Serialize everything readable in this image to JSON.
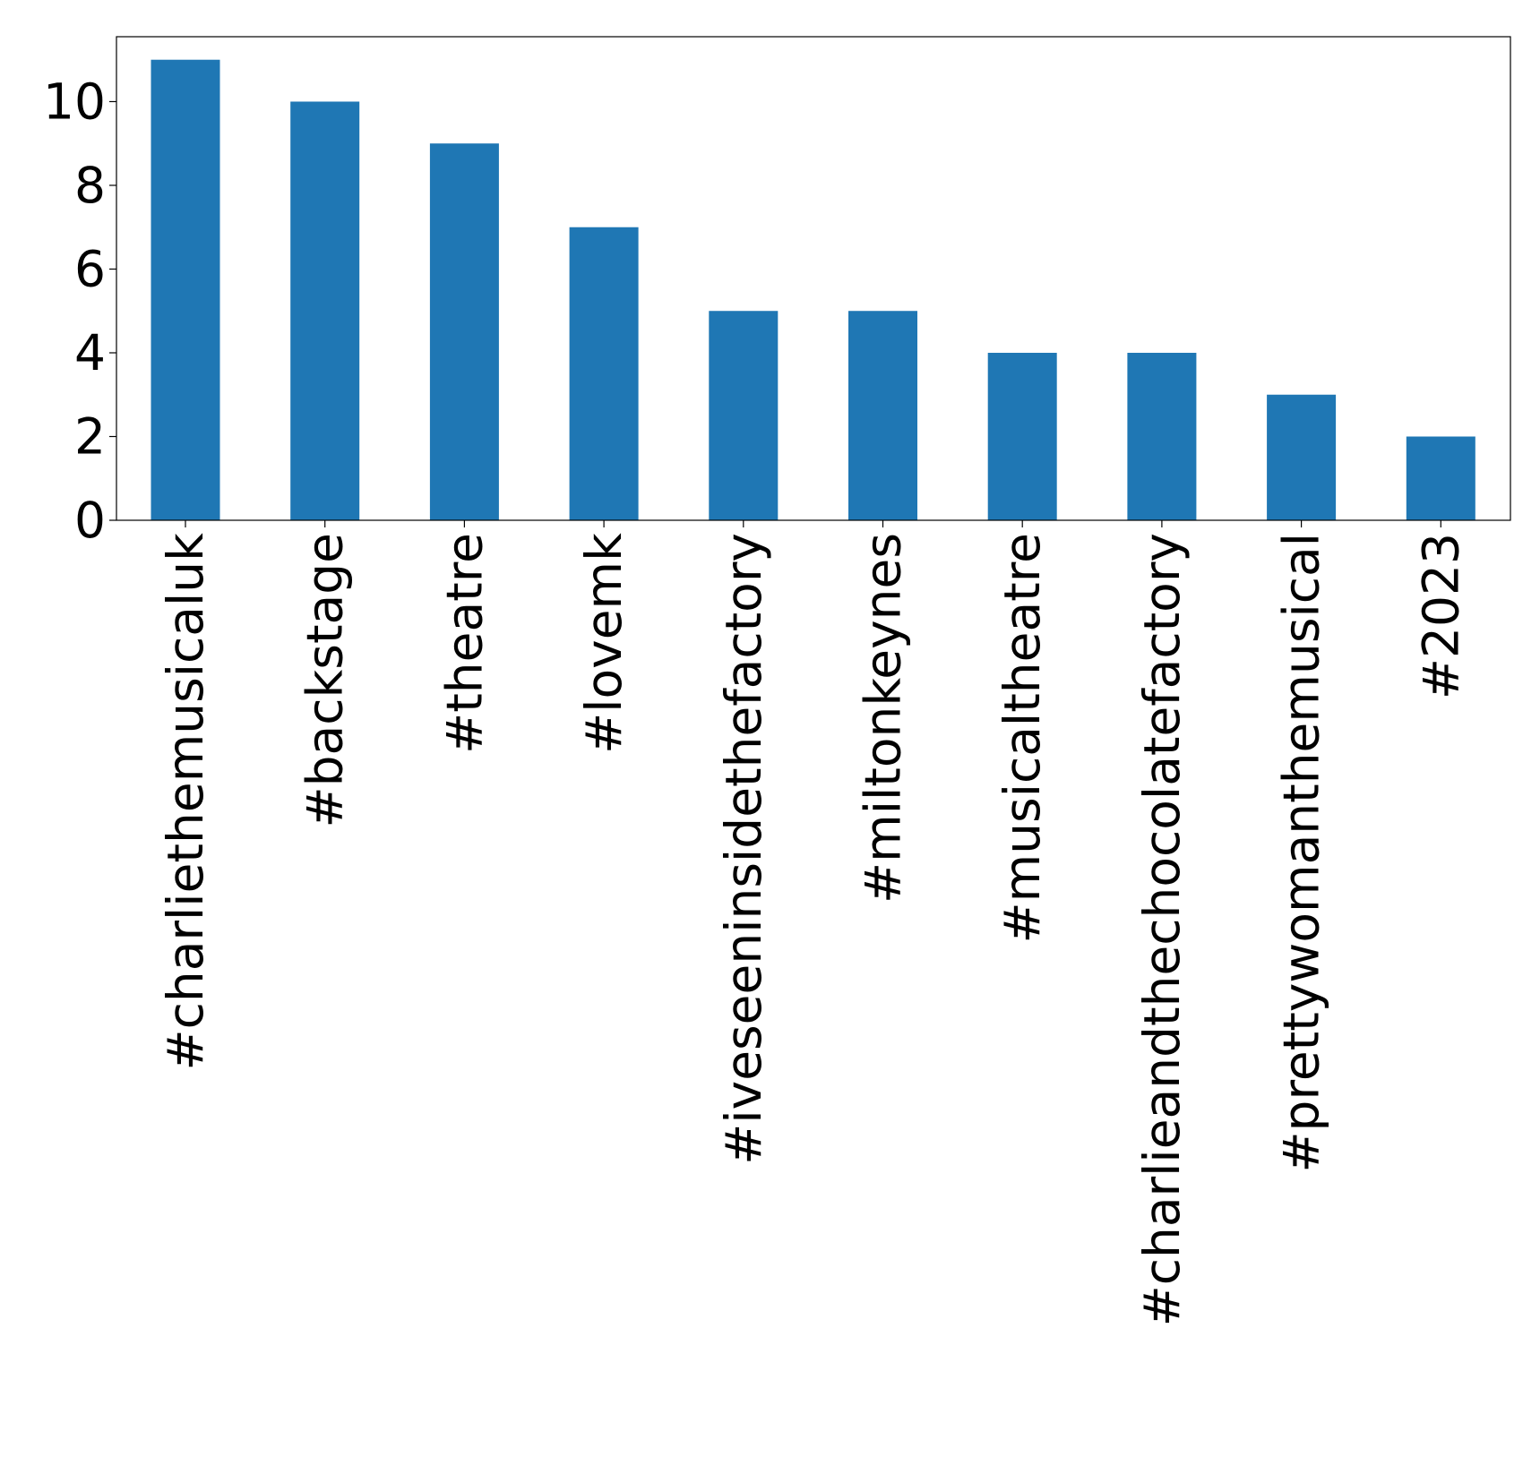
{
  "chart_data": {
    "type": "bar",
    "categories": [
      "#charliethemusicaluk",
      "#backstage",
      "#theatre",
      "#lovemk",
      "#iveseeninsidethefactory",
      "#miltonkeynes",
      "#musicaltheatre",
      "#charlieandthechocolatefactory",
      "#prettywomanthemusical",
      "#2023"
    ],
    "values": [
      11,
      10,
      9,
      7,
      5,
      5,
      4,
      4,
      3,
      2
    ],
    "title": "",
    "xlabel": "",
    "ylabel": "",
    "ylim": [
      0,
      11.55
    ],
    "yticks": [
      "0",
      "2",
      "4",
      "6",
      "8",
      "10"
    ],
    "bar_color": "#1f77b4",
    "grid": false,
    "legend": "none"
  }
}
